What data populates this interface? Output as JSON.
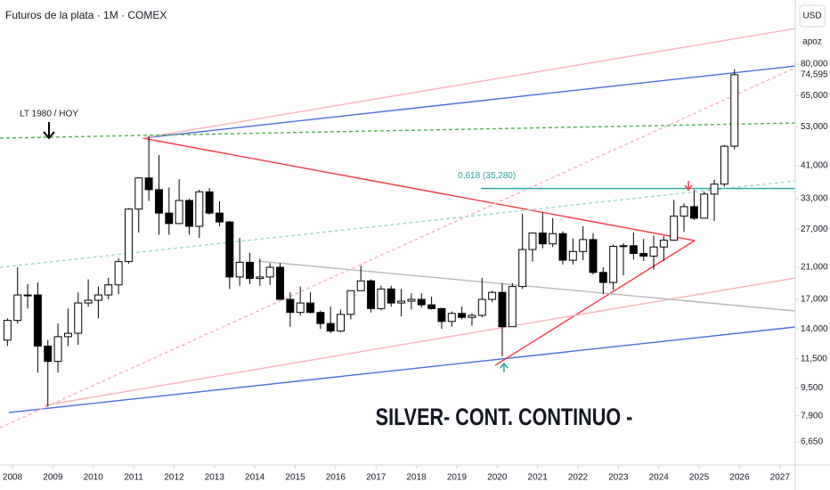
{
  "chart_data": {
    "type": "candlestick",
    "title": "Futuros de la plata · 1M · COMEX",
    "currency": "USD",
    "scale_button": "apoz",
    "caption": "SILVER- CONT. CONTINUO -",
    "annotation": "LT 1980 / HOY",
    "log_scale": true,
    "grid": false,
    "xlim": [
      2007.69,
      2027.38
    ],
    "xticks": [
      2008,
      2009,
      2010,
      2011,
      2012,
      2013,
      2014,
      2015,
      2016,
      2017,
      2018,
      2019,
      2020,
      2021,
      2022,
      2023,
      2024,
      2025,
      2026,
      2027
    ],
    "ylim": [
      5711,
      122000
    ],
    "yticks": [
      {
        "value": 6650,
        "label": "6,650"
      },
      {
        "value": 7900,
        "label": "7,900"
      },
      {
        "value": 9500,
        "label": "9,500"
      },
      {
        "value": 11500,
        "label": "11,500"
      },
      {
        "value": 14000,
        "label": "14,000"
      },
      {
        "value": 17000,
        "label": "17,000"
      },
      {
        "value": 21000,
        "label": "21,000"
      },
      {
        "value": 27000,
        "label": "27,000"
      },
      {
        "value": 33000,
        "label": "33,000"
      },
      {
        "value": 41000,
        "label": "41,000"
      },
      {
        "value": 53000,
        "label": "53,000"
      },
      {
        "value": 65000,
        "label": "65,000"
      },
      {
        "value": 80000,
        "label": "80,000"
      }
    ],
    "last_price": {
      "value": 74595,
      "label": "74,595"
    },
    "up_color": "#ffffff",
    "down_color": "#000000",
    "x": [
      2007.75,
      2008,
      2008.25,
      2008.5,
      2008.75,
      2009,
      2009.25,
      2009.5,
      2009.75,
      2010,
      2010.25,
      2010.5,
      2010.75,
      2011,
      2011.25,
      2011.5,
      2011.75,
      2012,
      2012.25,
      2012.5,
      2012.75,
      2013,
      2013.25,
      2013.5,
      2013.75,
      2014,
      2014.25,
      2014.5,
      2014.75,
      2015,
      2015.25,
      2015.5,
      2015.75,
      2016,
      2016.25,
      2016.5,
      2016.75,
      2017,
      2017.25,
      2017.5,
      2017.75,
      2018,
      2018.25,
      2018.5,
      2018.75,
      2019,
      2019.25,
      2019.5,
      2019.75,
      2020,
      2020.25,
      2020.5,
      2020.75,
      2021,
      2021.25,
      2021.5,
      2021.75,
      2022,
      2022.25,
      2022.5,
      2022.75,
      2023,
      2023.25,
      2023.5,
      2023.75,
      2024,
      2024.25,
      2024.5,
      2024.75,
      2025,
      2025.25,
      2025.5,
      2025.75
    ],
    "open": [
      13000,
      14800,
      17500,
      17500,
      12500,
      11300,
      13300,
      13600,
      16600,
      16900,
      17500,
      18700,
      21800,
      30800,
      37800,
      35000,
      30000,
      28000,
      32600,
      27500,
      34500,
      30000,
      28300,
      19700,
      21700,
      19500,
      19700,
      21000,
      17000,
      15600,
      16600,
      15600,
      14500,
      13800,
      15400,
      18000,
      19200,
      16000,
      18200,
      16600,
      16800,
      17000,
      16400,
      16000,
      14700,
      15500,
      15100,
      15300,
      17000,
      17800,
      14200,
      18500,
      23600,
      26300,
      24500,
      26200,
      22000,
      23300,
      25200,
      20300,
      19000,
      24100,
      24200,
      23000,
      22600,
      24000,
      25100,
      29400,
      31300,
      29000,
      34000,
      36300,
      46600
    ],
    "high": [
      15000,
      21000,
      18800,
      19000,
      13000,
      14500,
      16000,
      17800,
      19400,
      18500,
      19600,
      22300,
      31000,
      38000,
      49800,
      44000,
      35500,
      37500,
      33000,
      35000,
      35400,
      32400,
      28500,
      25500,
      23100,
      22200,
      21600,
      21600,
      17800,
      18500,
      17800,
      15800,
      16200,
      15900,
      18000,
      21200,
      19400,
      18600,
      18600,
      18200,
      17700,
      17700,
      17300,
      16100,
      15700,
      16200,
      15500,
      19600,
      18000,
      18900,
      18900,
      29900,
      26400,
      30100,
      29000,
      26600,
      25400,
      27500,
      26300,
      21000,
      24400,
      24600,
      26400,
      25300,
      25900,
      25800,
      32700,
      32000,
      35000,
      34600,
      37400,
      46900,
      77400
    ],
    "low": [
      12500,
      14500,
      16000,
      10500,
      8400,
      10500,
      12500,
      12600,
      16200,
      15000,
      17000,
      17600,
      21500,
      26400,
      32500,
      26000,
      26000,
      27900,
      26000,
      25500,
      29700,
      27500,
      18200,
      18600,
      18800,
      18600,
      18700,
      17000,
      14200,
      15300,
      15500,
      14000,
      13600,
      13700,
      14900,
      18000,
      15600,
      15800,
      16200,
      15200,
      15900,
      16100,
      15900,
      14000,
      14200,
      14900,
      14300,
      15100,
      16700,
      11700,
      14200,
      18200,
      21800,
      23800,
      24000,
      21400,
      21400,
      22000,
      20000,
      17600,
      18100,
      19900,
      22100,
      21900,
      20700,
      21900,
      25000,
      26500,
      28700,
      29000,
      28500,
      35700,
      45600
    ],
    "close": [
      14800,
      17500,
      17500,
      12500,
      11300,
      13300,
      13600,
      16600,
      16900,
      17500,
      18700,
      21800,
      30800,
      37800,
      35000,
      30000,
      28000,
      32600,
      27500,
      34500,
      30000,
      28300,
      19700,
      21700,
      19500,
      19700,
      21000,
      17000,
      15600,
      16600,
      15600,
      14500,
      13800,
      15400,
      18000,
      19200,
      16000,
      18200,
      16600,
      16800,
      17000,
      16400,
      16000,
      14700,
      15500,
      15100,
      15300,
      17000,
      17800,
      14200,
      18500,
      23600,
      26300,
      24500,
      26200,
      22000,
      23300,
      25200,
      20300,
      19000,
      24100,
      24200,
      23000,
      22600,
      24000,
      25100,
      29400,
      31300,
      29000,
      34000,
      36300,
      46600,
      74595
    ],
    "fib_level": {
      "value": 35280,
      "label": "0,618 (35,280)",
      "color": "#26a69a",
      "x": [
        2019.6,
        2027.38
      ]
    },
    "drawings": [
      {
        "color": "#4a6ee0",
        "dashed": false,
        "x": [
          2011.22,
          2027.38
        ],
        "y": [
          49140,
          79000
        ]
      },
      {
        "color": "#4a6ee0",
        "dashed": false,
        "x": [
          2007.91,
          2027.38
        ],
        "y": [
          8070,
          14170
        ]
      },
      {
        "color": "#f23645",
        "dashed": false,
        "x": [
          2011.22,
          2024.89
        ],
        "y": [
          49140,
          25030
        ]
      },
      {
        "color": "#f23645",
        "dashed": false,
        "x": [
          2019.95,
          2024.89
        ],
        "y": [
          11010,
          25030
        ]
      },
      {
        "color": "#f6b3b8",
        "dashed": false,
        "x": [
          2011.22,
          2027.38
        ],
        "y": [
          49140,
          101100
        ]
      },
      {
        "color": "#f6b3b8",
        "dashed": false,
        "x": [
          2008.79,
          2027.38
        ],
        "y": [
          8460,
          19570
        ]
      },
      {
        "color": "#f6b3b8",
        "dashed": true,
        "x": [
          2007.69,
          2027.38
        ],
        "y": [
          7300,
          78090
        ]
      },
      {
        "color": "#4caf50",
        "dashed": true,
        "x": [
          2007.69,
          2027.38
        ],
        "y": [
          49140,
          54290
        ]
      },
      {
        "color": "#9fd8d2",
        "dashed": true,
        "x": [
          2007.69,
          2027.38
        ],
        "y": [
          20990,
          37080
        ]
      },
      {
        "color": "#b8b8b8",
        "dashed": false,
        "x": [
          2014.08,
          2027.38
        ],
        "y": [
          21870,
          15750
        ]
      }
    ]
  }
}
